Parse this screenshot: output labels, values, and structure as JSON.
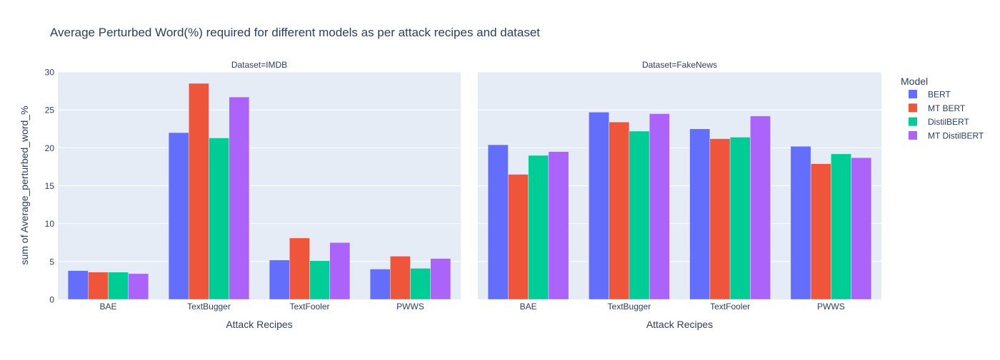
{
  "chart_data": {
    "type": "bar",
    "title": "Average Perturbed Word(%) required for different models as per attack recipes and dataset",
    "ylabel": "sum of Average_perturbed_word_%",
    "xlabel": "Attack Recipes",
    "ylim": [
      0,
      30
    ],
    "yticks": [
      0,
      5,
      10,
      15,
      20,
      25,
      30
    ],
    "grid": true,
    "legend_position": "right",
    "legend_title": "Model",
    "categories": [
      "BAE",
      "TextBugger",
      "TextFooler",
      "PWWS"
    ],
    "series_meta": [
      {
        "name": "BERT",
        "color": "#636efa"
      },
      {
        "name": "MT BERT",
        "color": "#ef553b"
      },
      {
        "name": "DistilBERT",
        "color": "#00cc96"
      },
      {
        "name": "MT DistilBERT",
        "color": "#ab63fa"
      }
    ],
    "panels": [
      {
        "title": "Dataset=IMDB",
        "series": [
          {
            "name": "BERT",
            "values": [
              3.8,
              22.0,
              5.2,
              4.0
            ]
          },
          {
            "name": "MT BERT",
            "values": [
              3.6,
              28.5,
              8.1,
              5.7
            ]
          },
          {
            "name": "DistilBERT",
            "values": [
              3.6,
              21.3,
              5.1,
              4.1
            ]
          },
          {
            "name": "MT DistilBERT",
            "values": [
              3.4,
              26.7,
              7.5,
              5.4
            ]
          }
        ]
      },
      {
        "title": "Dataset=FakeNews",
        "series": [
          {
            "name": "BERT",
            "values": [
              20.4,
              24.7,
              22.5,
              20.2
            ]
          },
          {
            "name": "MT BERT",
            "values": [
              16.5,
              23.4,
              21.2,
              17.9
            ]
          },
          {
            "name": "DistilBERT",
            "values": [
              19.0,
              22.2,
              21.4,
              19.2
            ]
          },
          {
            "name": "MT DistilBERT",
            "values": [
              19.5,
              24.5,
              24.2,
              18.7
            ]
          }
        ]
      }
    ]
  }
}
